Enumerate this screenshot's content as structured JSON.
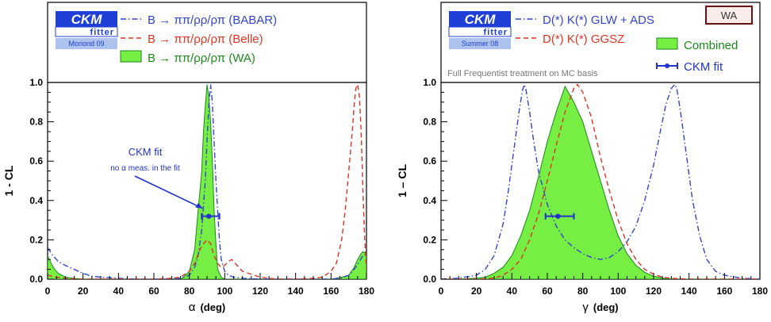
{
  "chart_data": [
    {
      "type": "line",
      "xlabel_symbol": "α",
      "xlabel_unit": "(deg)",
      "ylabel": "1 - CL",
      "xlim": [
        0,
        180
      ],
      "ylim": [
        0,
        1
      ],
      "xticks": [
        0,
        20,
        40,
        60,
        80,
        100,
        120,
        140,
        160,
        180
      ],
      "yticks": [
        0.0,
        0.2,
        0.4,
        0.6,
        0.8,
        1.0
      ],
      "logo": {
        "main": "CKM",
        "sub": "fitter",
        "edition": "Moriond 09"
      },
      "legend": [
        {
          "label": "B → ππ/ρρ/ρπ (BABAR)",
          "style": "dash-dot",
          "color": "#3344cc"
        },
        {
          "label": "B → ππ/ρρ/ρπ (Belle)",
          "style": "dashed",
          "color": "#dd3322"
        },
        {
          "label": "B → ππ/ρρ/ρπ (WA)",
          "style": "filled",
          "color": "#1a8a1a",
          "fill": "#77ee44"
        }
      ],
      "annotation": {
        "title": "CKM fit",
        "note": "no α meas. in the fit",
        "color": "#2233cc"
      },
      "ckm_fit": {
        "y": 0.32,
        "x": 91,
        "xerr_low": 4,
        "xerr_high": 6
      },
      "series": [
        {
          "name": "B → ππ/ρρ/ρπ (WA)",
          "style": "filled",
          "x": [
            0,
            2,
            4,
            6,
            8,
            10,
            14,
            20,
            30,
            40,
            50,
            60,
            70,
            76,
            80,
            83,
            85,
            86,
            87,
            88,
            89,
            90,
            91,
            92,
            93,
            94,
            95,
            96,
            98,
            100,
            104,
            110,
            130,
            150,
            160,
            166,
            170,
            173,
            175,
            177,
            178,
            180
          ],
          "y": [
            0.12,
            0.08,
            0.05,
            0.03,
            0.02,
            0.01,
            0.005,
            0,
            0,
            0,
            0,
            0,
            0,
            0.005,
            0.04,
            0.15,
            0.35,
            0.45,
            0.55,
            0.75,
            0.88,
            0.99,
            0.93,
            0.8,
            0.6,
            0.35,
            0.18,
            0.05,
            0.01,
            0,
            0,
            0,
            0,
            0,
            0,
            0.01,
            0.02,
            0.06,
            0.1,
            0.13,
            0.14,
            0.13
          ]
        },
        {
          "name": "B → ππ/ρρ/ρπ (BABAR)",
          "style": "dash-dot",
          "x": [
            0,
            3,
            6,
            10,
            15,
            20,
            25,
            30,
            40,
            50,
            60,
            70,
            75,
            80,
            83,
            85,
            87,
            89,
            90,
            91,
            92,
            93,
            94,
            95,
            96,
            97,
            98,
            100,
            102,
            105,
            110,
            120,
            130,
            140,
            150,
            160,
            165,
            170,
            173,
            176,
            178,
            180
          ],
          "y": [
            0.16,
            0.12,
            0.09,
            0.07,
            0.05,
            0.03,
            0.015,
            0.01,
            0.005,
            0,
            0,
            0,
            0.005,
            0.02,
            0.06,
            0.12,
            0.25,
            0.5,
            0.7,
            0.88,
            0.99,
            0.9,
            0.7,
            0.5,
            0.35,
            0.2,
            0.1,
            0.04,
            0.02,
            0.01,
            0.005,
            0,
            0,
            0,
            0,
            0,
            0.005,
            0.02,
            0.05,
            0.09,
            0.12,
            0.13
          ]
        },
        {
          "name": "B → ππ/ρρ/ρπ (Belle)",
          "style": "dashed",
          "x": [
            0,
            5,
            10,
            20,
            40,
            60,
            70,
            75,
            80,
            83,
            86,
            88,
            90,
            92,
            94,
            96,
            98,
            100,
            102,
            104,
            106,
            110,
            120,
            130,
            140,
            150,
            155,
            160,
            163,
            166,
            168,
            170,
            172,
            173,
            174,
            175,
            176,
            177,
            178,
            179,
            180
          ],
          "y": [
            0.02,
            0.01,
            0.005,
            0,
            0,
            0,
            0.005,
            0.01,
            0.04,
            0.08,
            0.15,
            0.18,
            0.2,
            0.18,
            0.12,
            0.08,
            0.06,
            0.07,
            0.09,
            0.1,
            0.08,
            0.04,
            0.01,
            0,
            0,
            0.005,
            0.01,
            0.04,
            0.08,
            0.2,
            0.35,
            0.55,
            0.75,
            0.88,
            0.97,
            0.99,
            0.93,
            0.75,
            0.45,
            0.2,
            0.05
          ]
        }
      ]
    },
    {
      "type": "line",
      "xlabel_symbol": "γ",
      "xlabel_unit": "(deg)",
      "ylabel": "1 – CL",
      "xlim": [
        0,
        180
      ],
      "ylim": [
        0,
        1
      ],
      "xticks": [
        0,
        20,
        40,
        60,
        80,
        100,
        120,
        140,
        160,
        180
      ],
      "yticks": [
        0.0,
        0.2,
        0.4,
        0.6,
        0.8,
        1.0
      ],
      "logo": {
        "main": "CKM",
        "sub": "fitter",
        "edition": "Summer 08"
      },
      "badge": "WA",
      "note": "Full Frequentist treatment on MC basis",
      "legend": [
        {
          "label": "D(*) K(*) GLW + ADS",
          "style": "dash-dot",
          "color": "#3344cc"
        },
        {
          "label": "D(*) K(*) GGSZ",
          "style": "dashed",
          "color": "#dd3322"
        },
        {
          "label": "Combined",
          "style": "filled",
          "color": "#1a8a1a",
          "fill": "#77ee44"
        },
        {
          "label": "CKM fit",
          "style": "errorbar",
          "color": "#2233cc"
        }
      ],
      "ckm_fit": {
        "y": 0.32,
        "x": 66,
        "xerr_low": 7,
        "xerr_high": 9
      },
      "series": [
        {
          "name": "Combined",
          "style": "filled",
          "x": [
            0,
            10,
            20,
            25,
            30,
            35,
            40,
            45,
            50,
            55,
            60,
            65,
            70,
            75,
            80,
            85,
            90,
            95,
            100,
            105,
            110,
            115,
            120,
            125,
            130,
            140,
            160,
            180
          ],
          "y": [
            0,
            0,
            0.005,
            0.01,
            0.03,
            0.06,
            0.12,
            0.22,
            0.35,
            0.52,
            0.7,
            0.85,
            0.98,
            0.9,
            0.8,
            0.65,
            0.5,
            0.35,
            0.22,
            0.13,
            0.07,
            0.035,
            0.015,
            0.005,
            0,
            0,
            0,
            0
          ]
        },
        {
          "name": "D(*) K(*) GLW + ADS",
          "style": "dash-dot",
          "x": [
            0,
            10,
            20,
            25,
            30,
            35,
            38,
            41,
            44,
            46,
            47,
            48,
            50,
            52,
            55,
            60,
            65,
            70,
            75,
            80,
            85,
            90,
            95,
            100,
            105,
            110,
            115,
            120,
            124,
            127,
            130,
            132,
            133,
            134,
            136,
            139,
            142,
            146,
            150,
            155,
            160,
            170,
            180
          ],
          "y": [
            0,
            0.005,
            0.02,
            0.05,
            0.12,
            0.28,
            0.45,
            0.65,
            0.85,
            0.96,
            0.99,
            0.96,
            0.85,
            0.72,
            0.55,
            0.38,
            0.27,
            0.2,
            0.16,
            0.13,
            0.11,
            0.1,
            0.11,
            0.14,
            0.19,
            0.27,
            0.4,
            0.58,
            0.76,
            0.89,
            0.97,
            0.99,
            0.97,
            0.92,
            0.8,
            0.6,
            0.4,
            0.22,
            0.1,
            0.04,
            0.02,
            0.005,
            0
          ]
        },
        {
          "name": "D(*) K(*) GGSZ",
          "style": "dashed",
          "x": [
            0,
            20,
            30,
            35,
            40,
            45,
            50,
            55,
            60,
            65,
            70,
            75,
            77,
            80,
            85,
            90,
            95,
            100,
            105,
            110,
            115,
            120,
            125,
            130,
            140,
            160,
            180
          ],
          "y": [
            0,
            0,
            0.005,
            0.02,
            0.05,
            0.1,
            0.2,
            0.33,
            0.5,
            0.68,
            0.85,
            0.97,
            0.99,
            0.95,
            0.82,
            0.62,
            0.45,
            0.3,
            0.18,
            0.1,
            0.05,
            0.025,
            0.01,
            0.005,
            0,
            0,
            0
          ]
        }
      ]
    }
  ]
}
